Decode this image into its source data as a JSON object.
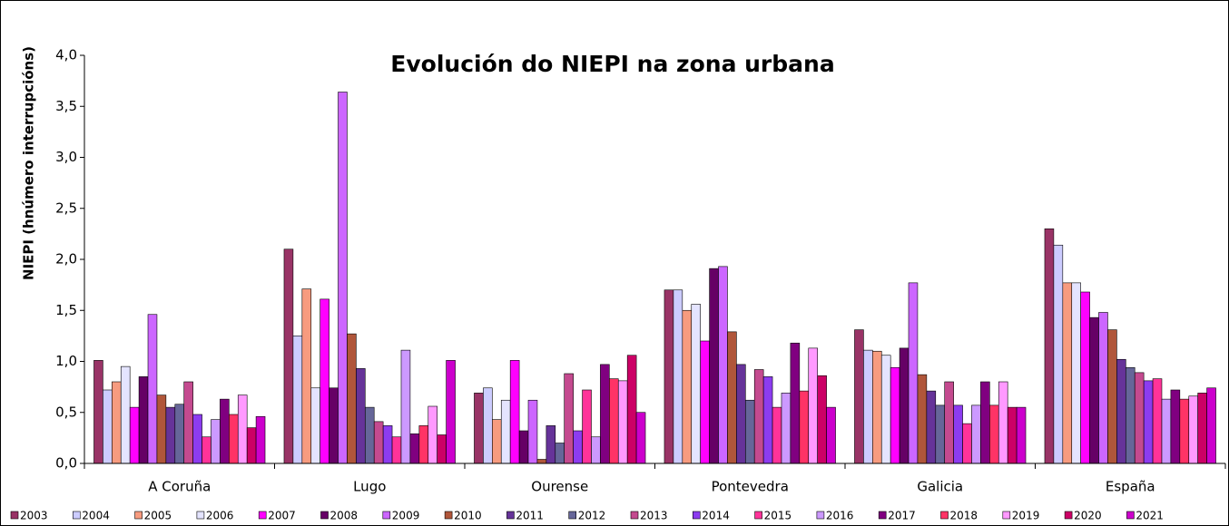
{
  "chart_data": {
    "type": "bar",
    "title": "Evolución do NIEPI na zona urbana",
    "y_label": "NIEPI (hnúmero interrupcións)",
    "categories": [
      "A Coruña",
      "Lugo",
      "Ourense",
      "Pontevedra",
      "Galicia",
      "España"
    ],
    "ylim": [
      0,
      4
    ],
    "yticks": [
      {
        "value": 0,
        "label": "0,0"
      },
      {
        "value": 0.5,
        "label": "0,5"
      },
      {
        "value": 1,
        "label": "1,0"
      },
      {
        "value": 1.5,
        "label": "1,5"
      },
      {
        "value": 2,
        "label": "2,0"
      },
      {
        "value": 2.5,
        "label": "2,5"
      },
      {
        "value": 3,
        "label": "3,0"
      },
      {
        "value": 3.5,
        "label": "3,5"
      },
      {
        "value": 4,
        "label": "4,0"
      }
    ],
    "grid": false,
    "legend": "bottom",
    "series": [
      {
        "name": "2003",
        "color": "#993366",
        "values": [
          1.01,
          2.1,
          0.69,
          1.7,
          1.31,
          2.3
        ]
      },
      {
        "name": "2004",
        "color": "#ccccff",
        "values": [
          0.72,
          1.25,
          0.74,
          1.7,
          1.11,
          2.14
        ]
      },
      {
        "name": "2005",
        "color": "#f79b7f",
        "values": [
          0.8,
          1.71,
          0.43,
          1.5,
          1.1,
          1.77
        ]
      },
      {
        "name": "2006",
        "color": "#e4e4ff",
        "values": [
          0.95,
          0.74,
          0.62,
          1.56,
          1.06,
          1.77
        ]
      },
      {
        "name": "2007",
        "color": "#ff00ff",
        "values": [
          0.55,
          1.61,
          1.01,
          1.2,
          0.94,
          1.68
        ]
      },
      {
        "name": "2008",
        "color": "#660066",
        "values": [
          0.85,
          0.74,
          0.32,
          1.91,
          1.13,
          1.43
        ]
      },
      {
        "name": "2009",
        "color": "#cc66ff",
        "values": [
          1.46,
          3.64,
          0.62,
          1.93,
          1.77,
          1.48
        ]
      },
      {
        "name": "2010",
        "color": "#b0563a",
        "values": [
          0.67,
          1.27,
          0.04,
          1.29,
          0.87,
          1.31
        ]
      },
      {
        "name": "2011",
        "color": "#663399",
        "values": [
          0.55,
          0.93,
          0.37,
          0.97,
          0.71,
          1.02
        ]
      },
      {
        "name": "2012",
        "color": "#666699",
        "values": [
          0.58,
          0.55,
          0.2,
          0.62,
          0.57,
          0.94
        ]
      },
      {
        "name": "2013",
        "color": "#c44a8f",
        "values": [
          0.8,
          0.41,
          0.88,
          0.92,
          0.8,
          0.89
        ]
      },
      {
        "name": "2014",
        "color": "#8c3cf0",
        "values": [
          0.48,
          0.37,
          0.32,
          0.85,
          0.57,
          0.81
        ]
      },
      {
        "name": "2015",
        "color": "#ff3399",
        "values": [
          0.26,
          0.26,
          0.72,
          0.55,
          0.39,
          0.83
        ]
      },
      {
        "name": "2016",
        "color": "#cc99ff",
        "values": [
          0.43,
          1.11,
          0.26,
          0.69,
          0.57,
          0.63
        ]
      },
      {
        "name": "2017",
        "color": "#800080",
        "values": [
          0.63,
          0.29,
          0.97,
          1.18,
          0.8,
          0.72
        ]
      },
      {
        "name": "2018",
        "color": "#ff3366",
        "values": [
          0.48,
          0.37,
          0.83,
          0.71,
          0.57,
          0.63
        ]
      },
      {
        "name": "2019",
        "color": "#ff99ff",
        "values": [
          0.67,
          0.56,
          0.81,
          1.13,
          0.8,
          0.66
        ]
      },
      {
        "name": "2020",
        "color": "#cc0066",
        "values": [
          0.35,
          0.28,
          1.06,
          0.86,
          0.55,
          0.69
        ]
      },
      {
        "name": "2021",
        "color": "#cc00cc",
        "values": [
          0.46,
          1.01,
          0.5,
          0.55,
          0.55,
          0.74
        ]
      }
    ]
  }
}
